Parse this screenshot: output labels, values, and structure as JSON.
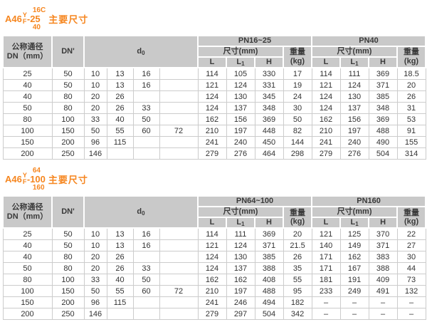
{
  "accent_color": "#F6861F",
  "header_bg_color": "#C9C9C9",
  "sections": [
    {
      "title": {
        "model": "A46",
        "sup": "Y",
        "sub": "F",
        "rating_top": "16C",
        "rating_mid": "-25",
        "rating_bottom": "40",
        "suffix": "主要尺寸"
      },
      "table": {
        "header": {
          "dn": "公称通径\nDN（mm）",
          "dn2": "DN'",
          "d0": {
            "base": "d",
            "sub": "0"
          },
          "group1": "PN16~25",
          "group2": "PN40",
          "size": "尺寸(mm)",
          "weight": "重量\n(kg)",
          "l": "L",
          "l1": {
            "base": "L",
            "sub": "1"
          },
          "h": "H"
        },
        "rows": [
          {
            "dn": "25",
            "dn2": "50",
            "d0": [
              "10",
              "13",
              "16",
              ""
            ],
            "g1": [
              "114",
              "105",
              "330",
              "17"
            ],
            "g2": [
              "114",
              "111",
              "369",
              "18.5"
            ]
          },
          {
            "dn": "40",
            "dn2": "50",
            "d0": [
              "10",
              "13",
              "16",
              ""
            ],
            "g1": [
              "121",
              "124",
              "331",
              "19"
            ],
            "g2": [
              "121",
              "124",
              "371",
              "20"
            ]
          },
          {
            "dn": "40",
            "dn2": "80",
            "d0": [
              "20",
              "26",
              "",
              ""
            ],
            "g1": [
              "124",
              "130",
              "345",
              "24"
            ],
            "g2": [
              "124",
              "130",
              "385",
              "26"
            ]
          },
          {
            "dn": "50",
            "dn2": "80",
            "d0": [
              "20",
              "26",
              "33",
              ""
            ],
            "g1": [
              "124",
              "137",
              "348",
              "30"
            ],
            "g2": [
              "124",
              "137",
              "348",
              "31"
            ]
          },
          {
            "dn": "80",
            "dn2": "100",
            "d0": [
              "33",
              "40",
              "50",
              ""
            ],
            "g1": [
              "162",
              "156",
              "369",
              "50"
            ],
            "g2": [
              "162",
              "156",
              "369",
              "53"
            ]
          },
          {
            "dn": "100",
            "dn2": "150",
            "d0": [
              "50",
              "55",
              "60",
              "72"
            ],
            "g1": [
              "210",
              "197",
              "448",
              "82"
            ],
            "g2": [
              "210",
              "197",
              "488",
              "91"
            ]
          },
          {
            "dn": "150",
            "dn2": "200",
            "d0": [
              "96",
              "115",
              "",
              ""
            ],
            "g1": [
              "241",
              "240",
              "450",
              "144"
            ],
            "g2": [
              "241",
              "240",
              "490",
              "155"
            ]
          },
          {
            "dn": "200",
            "dn2": "250",
            "d0": [
              "146",
              "",
              "",
              ""
            ],
            "g1": [
              "279",
              "276",
              "464",
              "298"
            ],
            "g2": [
              "279",
              "276",
              "504",
              "314"
            ]
          }
        ]
      }
    },
    {
      "title": {
        "model": "A46",
        "sup": "Y",
        "sub": "F",
        "rating_top": "64",
        "rating_mid": "-100",
        "rating_bottom": "160",
        "suffix": "主要尺寸"
      },
      "table": {
        "header": {
          "dn": "公称通径\nDN（mm）",
          "dn2": "DN'",
          "d0": {
            "base": "d",
            "sub": "0"
          },
          "group1": "PN64~100",
          "group2": "PN160",
          "size": "尺寸(mm)",
          "weight": "重量\n(kg)",
          "l": "L",
          "l1": {
            "base": "L",
            "sub": "1"
          },
          "h": "H"
        },
        "rows": [
          {
            "dn": "25",
            "dn2": "50",
            "d0": [
              "10",
              "13",
              "16",
              ""
            ],
            "g1": [
              "114",
              "111",
              "369",
              "20"
            ],
            "g2": [
              "121",
              "125",
              "370",
              "22"
            ]
          },
          {
            "dn": "40",
            "dn2": "50",
            "d0": [
              "10",
              "13",
              "16",
              ""
            ],
            "g1": [
              "121",
              "124",
              "371",
              "21.5"
            ],
            "g2": [
              "140",
              "149",
              "371",
              "27"
            ]
          },
          {
            "dn": "40",
            "dn2": "80",
            "d0": [
              "20",
              "26",
              "",
              ""
            ],
            "g1": [
              "124",
              "130",
              "385",
              "26"
            ],
            "g2": [
              "171",
              "162",
              "383",
              "30"
            ]
          },
          {
            "dn": "50",
            "dn2": "80",
            "d0": [
              "20",
              "26",
              "33",
              ""
            ],
            "g1": [
              "124",
              "137",
              "388",
              "35"
            ],
            "g2": [
              "171",
              "167",
              "388",
              "44"
            ]
          },
          {
            "dn": "80",
            "dn2": "100",
            "d0": [
              "33",
              "40",
              "50",
              ""
            ],
            "g1": [
              "162",
              "162",
              "408",
              "55"
            ],
            "g2": [
              "181",
              "191",
              "409",
              "73"
            ]
          },
          {
            "dn": "100",
            "dn2": "150",
            "d0": [
              "50",
              "55",
              "60",
              "72"
            ],
            "g1": [
              "210",
              "197",
              "488",
              "95"
            ],
            "g2": [
              "233",
              "249",
              "491",
              "132"
            ]
          },
          {
            "dn": "150",
            "dn2": "200",
            "d0": [
              "96",
              "115",
              "",
              ""
            ],
            "g1": [
              "241",
              "246",
              "494",
              "182"
            ],
            "g2": [
              "–",
              "–",
              "–",
              "–"
            ]
          },
          {
            "dn": "200",
            "dn2": "250",
            "d0": [
              "146",
              "",
              "",
              ""
            ],
            "g1": [
              "279",
              "297",
              "504",
              "342"
            ],
            "g2": [
              "–",
              "–",
              "–",
              "–"
            ]
          }
        ]
      }
    }
  ]
}
